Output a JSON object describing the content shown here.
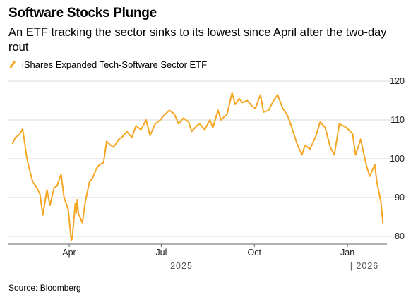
{
  "header": {
    "title": "Software Stocks Plunge",
    "subtitle": "An ETF tracking the sector sinks to its lowest since April after the two-day rout"
  },
  "footer": {
    "source": "Source: Bloomberg"
  },
  "colors": {
    "line": "#f5a623",
    "grid": "#d9d9d9",
    "axis": "#555555"
  },
  "chart_data": {
    "type": "line",
    "title": "Software Stocks Plunge",
    "subtitle": "An ETF tracking the sector sinks to its lowest since April after the two-day rout",
    "legend_position": "top-left",
    "grid": true,
    "y_axis_side": "right",
    "ylim": [
      78,
      121
    ],
    "yticks": [
      "120",
      "110",
      "100",
      "90",
      "80"
    ],
    "x_tick_labels": [
      "Apr",
      "Jul",
      "Oct",
      "Jan"
    ],
    "year_labels": [
      "2025",
      "| 2026"
    ],
    "series": [
      {
        "name": "iShares Expanded Tech-Software Sector ETF",
        "x": [
          "2025-02-04",
          "2025-02-07",
          "2025-02-11",
          "2025-02-14",
          "2025-02-18",
          "2025-02-20",
          "2025-02-24",
          "2025-02-27",
          "2025-03-03",
          "2025-03-06",
          "2025-03-10",
          "2025-03-13",
          "2025-03-17",
          "2025-03-20",
          "2025-03-24",
          "2025-03-27",
          "2025-03-31",
          "2025-04-03",
          "2025-04-04",
          "2025-04-07",
          "2025-04-08",
          "2025-04-09",
          "2025-04-10",
          "2025-04-14",
          "2025-04-17",
          "2025-04-21",
          "2025-04-24",
          "2025-04-28",
          "2025-05-01",
          "2025-05-05",
          "2025-05-08",
          "2025-05-12",
          "2025-05-15",
          "2025-05-20",
          "2025-05-23",
          "2025-05-28",
          "2025-06-02",
          "2025-06-06",
          "2025-06-11",
          "2025-06-16",
          "2025-06-20",
          "2025-06-25",
          "2025-06-30",
          "2025-07-03",
          "2025-07-09",
          "2025-07-14",
          "2025-07-18",
          "2025-07-23",
          "2025-07-28",
          "2025-07-31",
          "2025-08-05",
          "2025-08-08",
          "2025-08-13",
          "2025-08-18",
          "2025-08-21",
          "2025-08-26",
          "2025-08-29",
          "2025-09-04",
          "2025-09-09",
          "2025-09-12",
          "2025-09-16",
          "2025-09-19",
          "2025-09-24",
          "2025-09-29",
          "2025-10-02",
          "2025-10-07",
          "2025-10-10",
          "2025-10-15",
          "2025-10-20",
          "2025-10-24",
          "2025-10-29",
          "2025-11-03",
          "2025-11-07",
          "2025-11-12",
          "2025-11-17",
          "2025-11-20",
          "2025-11-25",
          "2025-12-01",
          "2025-12-05",
          "2025-12-10",
          "2025-12-15",
          "2025-12-19",
          "2025-12-24",
          "2025-12-31",
          "2026-01-06",
          "2026-01-09",
          "2026-01-14",
          "2026-01-20",
          "2026-01-23",
          "2026-01-28",
          "2026-01-30",
          "2026-02-03",
          "2026-02-05"
        ],
        "values": [
          104.0,
          105.5,
          106.3,
          107.7,
          100.5,
          98.0,
          94.0,
          93.0,
          91.0,
          85.5,
          92.0,
          88.0,
          92.5,
          93.0,
          96.0,
          90.0,
          87.0,
          79.0,
          79.5,
          88.5,
          86.0,
          89.5,
          86.0,
          83.5,
          89.0,
          94.0,
          95.0,
          97.5,
          98.5,
          99.0,
          104.5,
          103.5,
          103.0,
          105.0,
          105.5,
          107.0,
          105.5,
          108.5,
          107.5,
          110.0,
          106.0,
          109.0,
          110.0,
          111.0,
          112.5,
          111.5,
          109.0,
          110.5,
          109.5,
          107.0,
          108.5,
          109.0,
          107.5,
          110.0,
          108.0,
          112.5,
          110.0,
          111.5,
          117.0,
          114.0,
          115.5,
          114.5,
          115.0,
          113.5,
          113.0,
          116.5,
          112.0,
          112.5,
          115.0,
          116.5,
          113.0,
          111.0,
          108.0,
          104.0,
          101.0,
          103.5,
          102.5,
          106.0,
          109.5,
          108.0,
          103.0,
          101.0,
          109.0,
          108.0,
          106.5,
          101.0,
          105.0,
          98.0,
          95.5,
          98.5,
          94.0,
          89.0,
          83.5
        ]
      }
    ]
  }
}
